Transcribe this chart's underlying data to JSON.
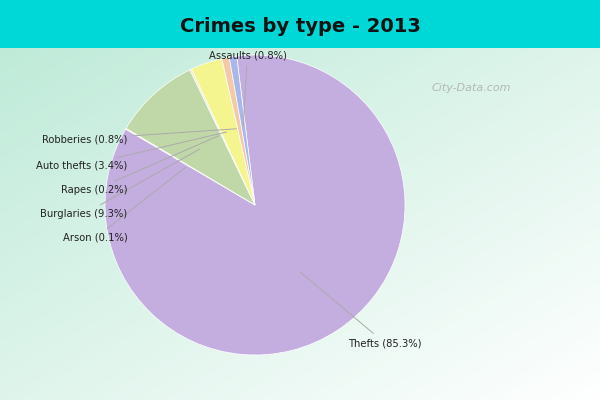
{
  "title": "Crimes by type - 2013",
  "slices": [
    {
      "label": "Thefts",
      "pct": 85.3,
      "color": "#c4aee0"
    },
    {
      "label": "Arson",
      "pct": 0.1,
      "color": "#c8ddb0"
    },
    {
      "label": "Burglaries",
      "pct": 9.3,
      "color": "#c0d8a8"
    },
    {
      "label": "Rapes",
      "pct": 0.2,
      "color": "#e8e8c0"
    },
    {
      "label": "Auto thefts",
      "pct": 3.4,
      "color": "#f5f590"
    },
    {
      "label": "Robberies",
      "pct": 0.8,
      "color": "#f5c8a8"
    },
    {
      "label": "Assaults",
      "pct": 0.8,
      "color": "#a8b8e8"
    }
  ],
  "background_top": "#00d8d8",
  "title_fontsize": 14,
  "watermark": "City-Data.com",
  "label_color": "#222222",
  "line_color": "#aaaaaa"
}
